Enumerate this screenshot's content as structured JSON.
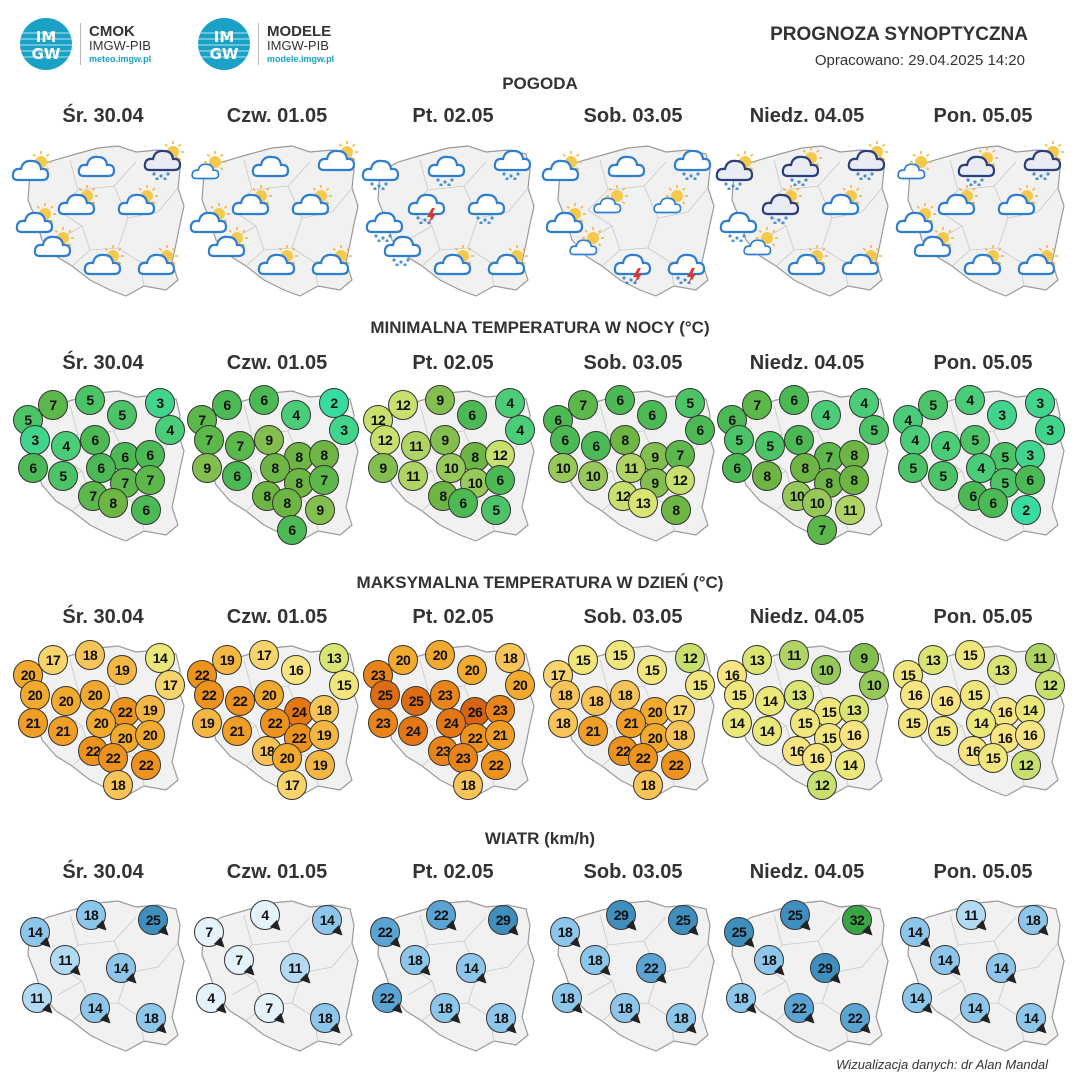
{
  "header": {
    "logo1": {
      "badge_top": "IM",
      "badge_bottom": "GW",
      "name": "CMOK",
      "org": "IMGW-PIB",
      "url": "meteo.imgw.pl"
    },
    "logo2": {
      "badge_top": "IM",
      "badge_bottom": "GW",
      "name": "MODELE",
      "org": "IMGW-PIB",
      "url": "modele.imgw.pl"
    },
    "title": "PROGNOZA SYNOPTYCZNA",
    "date": "Opracowano: 29.04.2025 14:20"
  },
  "days": [
    "Śr. 30.04",
    "Czw. 01.05",
    "Pt. 02.05",
    "Sob. 03.05",
    "Niedz. 04.05",
    "Pon. 05.05"
  ],
  "sections": {
    "weather": {
      "title": "POGODA",
      "maps": [
        [
          "partly-cloudy",
          "cloudy",
          "rain-cloud",
          "partly-cloudy",
          "partly-cloudy",
          "partly-cloudy",
          "partly-cloudy",
          "partly-cloudy",
          "partly-cloudy"
        ],
        [
          "partly-cloudy-light",
          "cloudy",
          "partly-cloudy",
          "partly-cloudy",
          "partly-cloudy",
          "partly-cloudy",
          "partly-cloudy",
          "partly-cloudy",
          "partly-cloudy"
        ],
        [
          "rain",
          "rain",
          "rain",
          "thunderstorm",
          "rain",
          "rain",
          "partly-cloudy",
          "partly-cloudy",
          "rain"
        ],
        [
          "partly-cloudy",
          "cloudy",
          "rain",
          "partly-cloudy-light",
          "partly-cloudy-light",
          "partly-cloudy-light",
          "thunderstorm",
          "thunderstorm",
          "partly-cloudy"
        ],
        [
          "rain-cloud",
          "rain-cloud",
          "rain-cloud",
          "rain-cloud",
          "partly-cloudy",
          "partly-cloudy-light",
          "partly-cloudy",
          "partly-cloudy",
          "rain"
        ],
        [
          "partly-cloudy-light",
          "rain-cloud",
          "rain-cloud",
          "partly-cloudy",
          "partly-cloudy",
          "partly-cloudy",
          "partly-cloudy",
          "partly-cloudy",
          "partly-cloudy"
        ]
      ]
    },
    "tmin": {
      "title": "MINIMALNA TEMPERATURA W NOCY (°C)",
      "maps": [
        [
          5,
          7,
          5,
          5,
          3,
          4,
          3,
          4,
          6,
          6,
          6,
          6,
          5,
          6,
          7,
          7,
          7,
          8,
          6
        ],
        [
          7,
          6,
          6,
          4,
          2,
          3,
          7,
          7,
          9,
          8,
          8,
          9,
          6,
          8,
          8,
          7,
          8,
          8,
          9,
          6
        ],
        [
          12,
          12,
          9,
          6,
          4,
          4,
          12,
          11,
          9,
          8,
          12,
          9,
          11,
          10,
          10,
          6,
          8,
          6,
          5
        ],
        [
          6,
          7,
          6,
          6,
          5,
          6,
          6,
          6,
          8,
          9,
          7,
          10,
          10,
          11,
          9,
          12,
          12,
          13,
          8
        ],
        [
          6,
          7,
          6,
          4,
          4,
          5,
          5,
          5,
          6,
          7,
          8,
          6,
          8,
          8,
          8,
          8,
          10,
          10,
          11,
          7
        ],
        [
          4,
          5,
          4,
          3,
          3,
          3,
          4,
          4,
          5,
          5,
          3,
          5,
          5,
          4,
          5,
          6,
          6,
          6,
          2
        ]
      ]
    },
    "tmax": {
      "title": "MAKSYMALNA TEMPERATURA W DZIEŃ (°C)",
      "maps": [
        [
          20,
          17,
          18,
          19,
          14,
          17,
          20,
          20,
          20,
          22,
          19,
          21,
          21,
          20,
          20,
          20,
          22,
          22,
          22,
          18
        ],
        [
          22,
          19,
          17,
          16,
          13,
          15,
          22,
          22,
          20,
          24,
          18,
          19,
          21,
          22,
          22,
          19,
          18,
          20,
          19,
          17
        ],
        [
          23,
          20,
          20,
          20,
          18,
          20,
          25,
          25,
          23,
          26,
          23,
          23,
          24,
          24,
          22,
          21,
          23,
          23,
          22,
          18
        ],
        [
          17,
          15,
          15,
          15,
          12,
          15,
          18,
          18,
          18,
          20,
          17,
          18,
          21,
          21,
          20,
          18,
          22,
          22,
          22,
          18
        ],
        [
          16,
          13,
          11,
          10,
          9,
          10,
          15,
          14,
          13,
          15,
          13,
          14,
          14,
          15,
          15,
          16,
          16,
          16,
          14,
          12
        ],
        [
          15,
          13,
          15,
          13,
          11,
          12,
          16,
          16,
          15,
          16,
          14,
          15,
          15,
          14,
          16,
          16,
          16,
          15,
          12
        ]
      ]
    },
    "wind": {
      "title": "WIATR (km/h)",
      "maps": [
        [
          14,
          18,
          25,
          11,
          14,
          11,
          14,
          18
        ],
        [
          7,
          4,
          14,
          7,
          11,
          4,
          7,
          18
        ],
        [
          22,
          22,
          29,
          18,
          14,
          22,
          18,
          18
        ],
        [
          18,
          29,
          25,
          18,
          22,
          18,
          18,
          18
        ],
        [
          25,
          25,
          32,
          18,
          29,
          18,
          22,
          22
        ],
        [
          14,
          11,
          18,
          14,
          14,
          14,
          14,
          14
        ]
      ]
    }
  },
  "credit": "Wizualizacja danych: dr Alan Mandal"
}
